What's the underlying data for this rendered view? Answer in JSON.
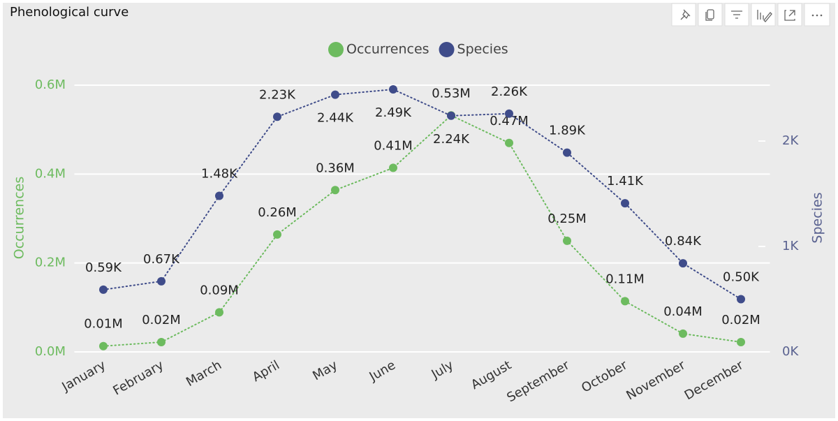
{
  "chart_data": {
    "type": "line",
    "title": "Phenological curve",
    "categories": [
      "January",
      "February",
      "March",
      "April",
      "May",
      "June",
      "July",
      "August",
      "September",
      "October",
      "November",
      "December"
    ],
    "series": [
      {
        "name": "Occurrences",
        "color": "#6dbb5f",
        "axis": "y",
        "values": [
          13000,
          22000,
          89000,
          264000,
          364000,
          414000,
          532000,
          470000,
          250000,
          114000,
          41000,
          22000
        ],
        "value_labels": [
          "0.01M",
          "0.02M",
          "0.09M",
          "0.26M",
          "0.36M",
          "0.41M",
          "0.53M",
          "0.47M",
          "0.25M",
          "0.11M",
          "0.04M",
          "0.02M"
        ]
      },
      {
        "name": "Species",
        "color": "#3f4c8a",
        "axis": "y2",
        "values": [
          590,
          670,
          1480,
          2230,
          2440,
          2490,
          2240,
          2260,
          1890,
          1410,
          840,
          500
        ],
        "value_labels": [
          "0.59K",
          "0.67K",
          "1.48K",
          "2.23K",
          "2.44K",
          "2.49K",
          "2.24K",
          "2.26K",
          "1.89K",
          "1.41K",
          "0.84K",
          "0.50K"
        ]
      }
    ],
    "ylabel": "Occurrences",
    "y2label": "Species",
    "ylim": [
      0,
      600000
    ],
    "yticks": [
      {
        "value": 0,
        "label": "0.0M"
      },
      {
        "value": 200000,
        "label": "0.2M"
      },
      {
        "value": 400000,
        "label": "0.4M"
      },
      {
        "value": 600000,
        "label": "0.6M"
      }
    ],
    "y2lim": [
      0,
      2530
    ],
    "y2ticks": [
      {
        "value": 0,
        "label": "0K"
      },
      {
        "value": 1000,
        "label": "1K"
      },
      {
        "value": 2000,
        "label": "2K"
      }
    ],
    "grid": true,
    "legend": "top"
  }
}
